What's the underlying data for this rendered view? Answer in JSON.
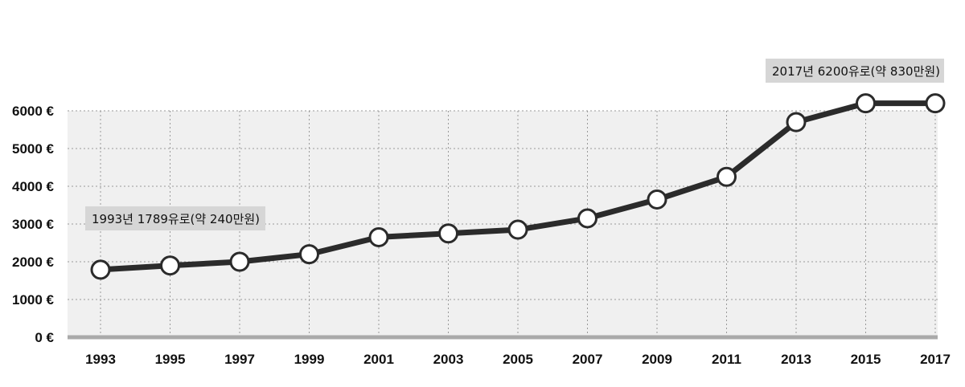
{
  "chart_data": {
    "type": "line",
    "x": [
      1993,
      1995,
      1997,
      1999,
      2001,
      2003,
      2005,
      2007,
      2009,
      2011,
      2013,
      2015,
      2017
    ],
    "series": [
      {
        "values": [
          1789,
          1900,
          2000,
          2200,
          2650,
          2750,
          2850,
          3150,
          3650,
          4250,
          5700,
          6200,
          6200
        ]
      }
    ],
    "xticks": [
      "1993",
      "1995",
      "1997",
      "1999",
      "2001",
      "2003",
      "2005",
      "2007",
      "2009",
      "2011",
      "2013",
      "2015",
      "2017"
    ],
    "yticks": [
      "0 €",
      "1000 €",
      "2000 €",
      "3000 €",
      "4000 €",
      "5000 €",
      "6000 €"
    ],
    "ylim": [
      0,
      6000
    ],
    "grid": true,
    "annotations": [
      {
        "text": "1993년 1789유로(약 240만원)"
      },
      {
        "text": "2017년 6200유로(약 830만원)"
      }
    ],
    "colors": {
      "line": "#2b2b2b",
      "marker_fill": "#ffffff",
      "plot_bg": "#f0f0f0",
      "baseline": "#aaaaaa",
      "note_bg": "#d6d6d6"
    }
  }
}
